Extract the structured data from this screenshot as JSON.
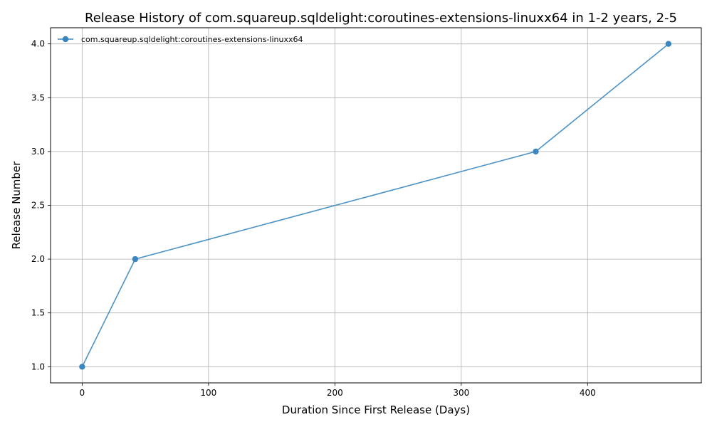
{
  "chart_data": {
    "type": "line",
    "title": "Release History of com.squareup.sqldelight:coroutines-extensions-linuxx64 in 1-2 years, 2-5",
    "xlabel": "Duration Since First Release (Days)",
    "ylabel": "Release Number",
    "xlim": [
      -25,
      490
    ],
    "ylim": [
      0.85,
      4.15
    ],
    "x_ticks": [
      0,
      100,
      200,
      300,
      400
    ],
    "y_ticks": [
      1.0,
      1.5,
      2.0,
      2.5,
      3.0,
      3.5,
      4.0
    ],
    "x_tick_labels": [
      "0",
      "100",
      "200",
      "300",
      "400"
    ],
    "y_tick_labels": [
      "1.0",
      "1.5",
      "2.0",
      "2.5",
      "3.0",
      "3.5",
      "4.0"
    ],
    "grid": true,
    "legend_position": "top-left",
    "series": [
      {
        "name": "com.squareup.sqldelight:coroutines-extensions-linuxx64",
        "color": "#3a87c0",
        "marker": "circle",
        "x": [
          0,
          42,
          359,
          464
        ],
        "y": [
          1,
          2,
          3,
          4
        ]
      }
    ]
  }
}
